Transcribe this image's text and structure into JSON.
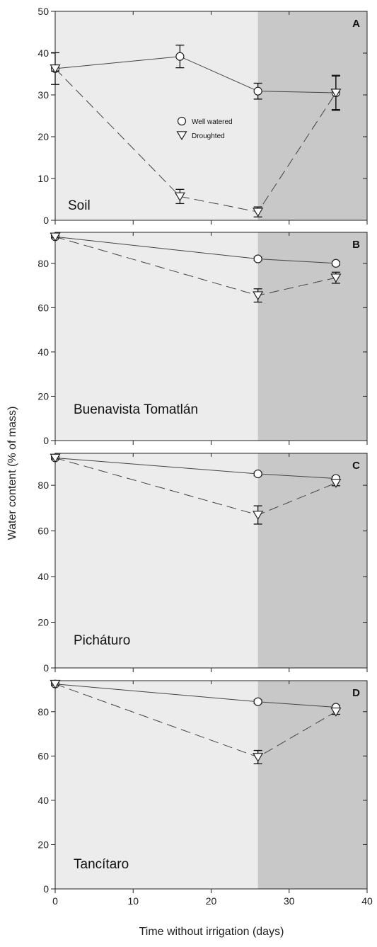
{
  "chart_data": {
    "type": "line",
    "xlabel": "Time without irrigation (days)",
    "ylabel": "Water content (% of mass)",
    "xlim": [
      0,
      40
    ],
    "x_ticks": [
      0,
      10,
      20,
      30,
      40
    ],
    "shaded_from_x": 26,
    "legend": {
      "placement": "inside panel A, center",
      "entries": [
        {
          "label": "Well watered",
          "marker": "circle",
          "line": "solid"
        },
        {
          "label": "Droughted",
          "marker": "triangle-down",
          "line": "dashed"
        }
      ]
    },
    "panels": [
      {
        "letter": "A",
        "label": "Soil",
        "ylim": [
          0,
          50
        ],
        "y_ticks": [
          0,
          10,
          20,
          30,
          40,
          50
        ],
        "series": [
          {
            "name": "Well watered",
            "x": [
              0,
              16,
              26,
              36
            ],
            "y": [
              36.3,
              39.2,
              30.9,
              30.5
            ],
            "err": [
              3.8,
              2.7,
              1.9,
              4.0
            ]
          },
          {
            "name": "Droughted",
            "x": [
              0,
              16,
              26,
              36
            ],
            "y": [
              36.3,
              5.7,
              2.0,
              30.5
            ],
            "err": [
              0.6,
              1.7,
              1.2,
              4.2
            ]
          }
        ]
      },
      {
        "letter": "B",
        "label": "Buenavista Tomatlán",
        "ylim": [
          0,
          94
        ],
        "y_ticks": [
          0,
          20,
          40,
          60,
          80
        ],
        "series": [
          {
            "name": "Well watered",
            "x": [
              0,
              26,
              36
            ],
            "y": [
              92,
              82,
              80
            ],
            "err": [
              0.5,
              0.8,
              0.8
            ]
          },
          {
            "name": "Droughted",
            "x": [
              0,
              26,
              36
            ],
            "y": [
              92,
              65.5,
              73.5
            ],
            "err": [
              0.5,
              3.0,
              2.5
            ]
          }
        ]
      },
      {
        "letter": "C",
        "label": "Picháturo",
        "ylim": [
          0,
          94
        ],
        "y_ticks": [
          0,
          20,
          40,
          60,
          80
        ],
        "series": [
          {
            "name": "Well watered",
            "x": [
              0,
              26,
              36
            ],
            "y": [
              92,
              85,
              83
            ],
            "err": [
              0.5,
              0.8,
              0.8
            ]
          },
          {
            "name": "Droughted",
            "x": [
              0,
              26,
              36
            ],
            "y": [
              92,
              67,
              81
            ],
            "err": [
              0.5,
              4.0,
              1.2
            ]
          }
        ]
      },
      {
        "letter": "D",
        "label": "Tancítaro",
        "ylim": [
          0,
          94
        ],
        "y_ticks": [
          0,
          20,
          40,
          60,
          80
        ],
        "series": [
          {
            "name": "Well watered",
            "x": [
              0,
              26,
              36
            ],
            "y": [
              92.5,
              84.5,
              82
            ],
            "err": [
              0.5,
              0.8,
              0.8
            ]
          },
          {
            "name": "Droughted",
            "x": [
              0,
              26,
              36
            ],
            "y": [
              92.5,
              59.5,
              80
            ],
            "err": [
              0.5,
              3.0,
              1.2
            ]
          }
        ]
      }
    ]
  },
  "colors": {
    "background": "#ffffff",
    "plot_area": "#ececec",
    "shaded_region": "#c8c8c8",
    "ink": "#222222"
  }
}
